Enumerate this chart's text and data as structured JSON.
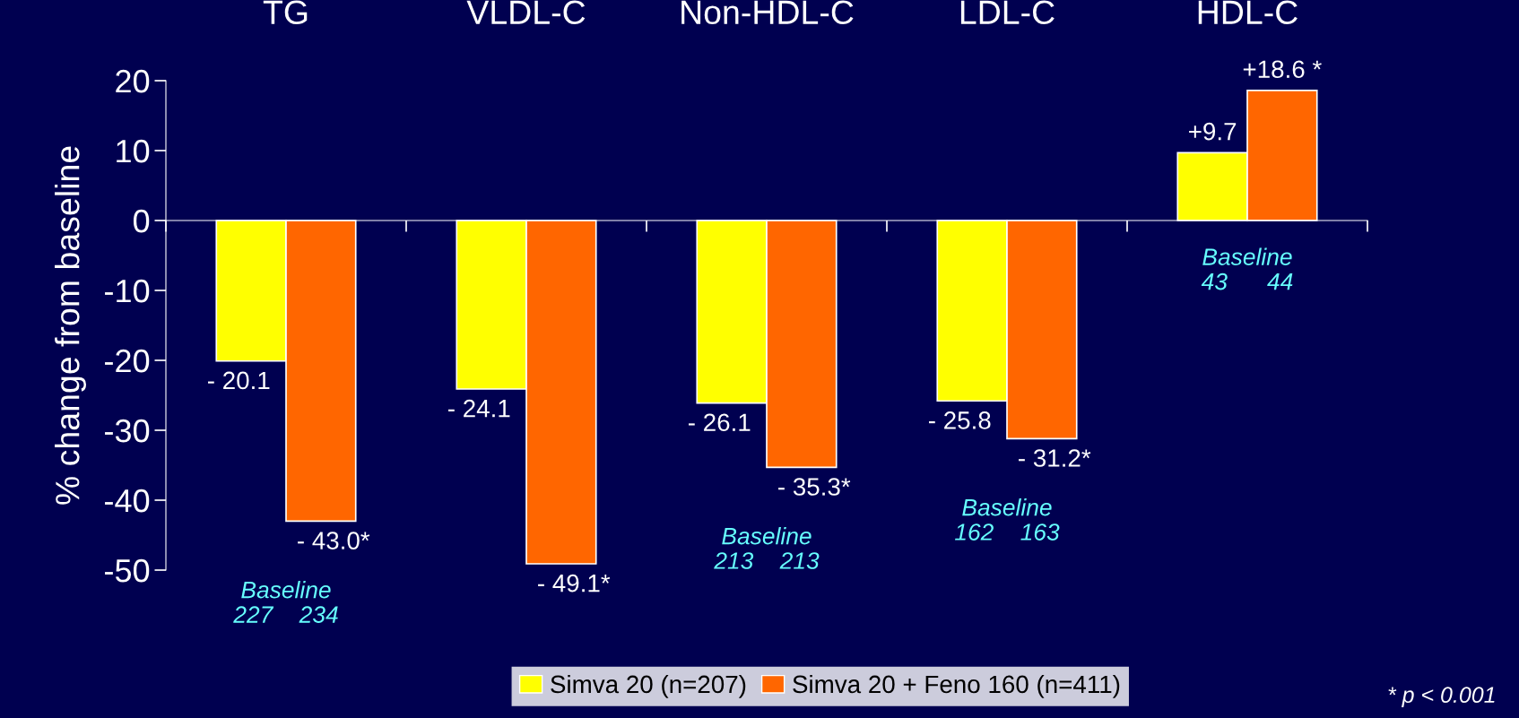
{
  "chart_data": {
    "type": "bar",
    "categories": [
      "TG",
      "VLDL-C",
      "Non-HDL-C",
      "LDL-C",
      "HDL-C"
    ],
    "ylabel": "% change from baseline",
    "series": [
      {
        "name": "Simva 20 (n=207)",
        "color": "#ffff00",
        "values": [
          -20.1,
          -24.1,
          -26.1,
          -25.8,
          9.7
        ],
        "value_labels": [
          "- 20.1",
          "- 24.1",
          "- 26.1",
          "- 25.8",
          "+9.7"
        ]
      },
      {
        "name": "Simva 20 + Feno 160 (n=411)",
        "color": "#ff6600",
        "values": [
          -43.0,
          -49.1,
          -35.3,
          -31.2,
          18.6
        ],
        "value_labels": [
          "- 43.0*",
          "- 49.1*",
          "- 35.3*",
          "- 31.2*",
          "+18.6 *"
        ]
      }
    ],
    "ylim": [
      -50,
      20
    ],
    "yticks": [
      -50,
      -40,
      -30,
      -20,
      -10,
      0,
      10,
      20
    ],
    "annotations": [
      "Baseline\n227    234",
      "Baseline\n213    213",
      "Baseline\n162    163",
      "Baseline\n43      44",
      "* p < 0.001"
    ],
    "legend": "bottom"
  }
}
